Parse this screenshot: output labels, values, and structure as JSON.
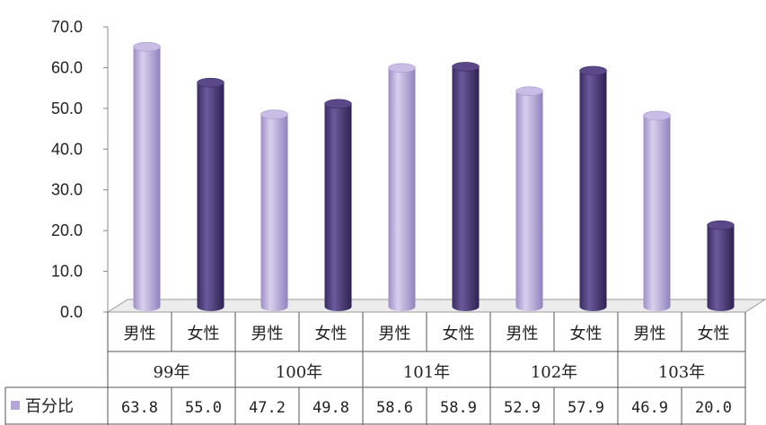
{
  "chart_data": {
    "type": "bar",
    "groups": [
      "99年",
      "100年",
      "101年",
      "102年",
      "103年"
    ],
    "subcategories": [
      "男性",
      "女性"
    ],
    "categories": [
      "男性",
      "女性",
      "男性",
      "女性",
      "男性",
      "女性",
      "男性",
      "女性",
      "男性",
      "女性"
    ],
    "series": [
      {
        "name": "百分比",
        "values": [
          63.8,
          55.0,
          47.2,
          49.8,
          58.6,
          58.9,
          52.9,
          57.9,
          46.9,
          20.0
        ]
      }
    ],
    "value_labels": [
      "63.8",
      "55.0",
      "47.2",
      "49.8",
      "58.6",
      "58.9",
      "52.9",
      "57.9",
      "46.9",
      "20.0"
    ],
    "y_ticks": [
      "0.0",
      "10.0",
      "20.0",
      "30.0",
      "40.0",
      "50.0",
      "60.0",
      "70.0"
    ],
    "ylim": [
      0,
      70
    ],
    "grid": false,
    "legend": "data-table",
    "colors": {
      "男性": "#b4a6d6",
      "女性": "#4b3a78",
      "legend_key": "#b4a6d6"
    }
  }
}
